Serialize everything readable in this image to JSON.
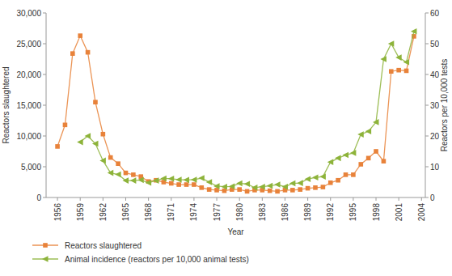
{
  "chart_data": {
    "type": "line",
    "x_label": "Year",
    "y_label": "Reactors slaughtered",
    "y2_label": "Reactors per 10,000 tests",
    "x": [
      1956,
      1957,
      1958,
      1959,
      1960,
      1961,
      1962,
      1963,
      1964,
      1965,
      1966,
      1967,
      1968,
      1969,
      1970,
      1971,
      1972,
      1973,
      1974,
      1975,
      1976,
      1977,
      1978,
      1979,
      1980,
      1981,
      1982,
      1983,
      1984,
      1985,
      1986,
      1987,
      1988,
      1989,
      1990,
      1991,
      1992,
      1993,
      1994,
      1995,
      1996,
      1997,
      1998,
      1999,
      2000,
      2001,
      2002,
      2003
    ],
    "xlim": [
      1954.5,
      2004.5
    ],
    "xticks": [
      1956,
      1959,
      1962,
      1965,
      1968,
      1971,
      1974,
      1977,
      1980,
      1983,
      1986,
      1989,
      1992,
      1995,
      1998,
      2001,
      2004
    ],
    "ylim": [
      0,
      30000
    ],
    "yticks": [
      0,
      {
        "value": 5000,
        "label": "5,000"
      },
      {
        "value": 10000,
        "label": "10,000"
      },
      {
        "value": 15000,
        "label": "15,000"
      },
      {
        "value": 20000,
        "label": "20,000"
      },
      {
        "value": 25000,
        "label": "25,000"
      },
      {
        "value": 30000,
        "label": "30,000"
      }
    ],
    "y2lim": [
      0,
      60
    ],
    "y2ticks": [
      0,
      10,
      20,
      30,
      40,
      50,
      60
    ],
    "legend": "bottom",
    "grid": false,
    "series": [
      {
        "name": "Reactors slaughtered",
        "color": "#e8823a",
        "marker": "square",
        "values": [
          8300,
          11800,
          23400,
          26300,
          23600,
          15500,
          10300,
          6500,
          5500,
          4000,
          3700,
          3400,
          2600,
          2800,
          2500,
          2300,
          2100,
          2100,
          2100,
          1600,
          1300,
          1200,
          1100,
          1300,
          1300,
          1000,
          1200,
          1200,
          1100,
          1000,
          1200,
          1200,
          1300,
          1500,
          1600,
          1700,
          2400,
          2800,
          3700,
          3700,
          5400,
          6400,
          7500,
          5900,
          20500,
          20700,
          20600,
          26200
        ]
      },
      {
        "name": "Animal incidence (reactors per 10,000 animal tests)",
        "color": "#8db33a",
        "marker": "triangle-left",
        "axis": "y2",
        "values": [
          null,
          null,
          null,
          18,
          20,
          17.5,
          12,
          8,
          7.5,
          5.5,
          5.5,
          5.7,
          4.8,
          5.5,
          6.2,
          6.1,
          5.8,
          5.7,
          5.8,
          6.3,
          5,
          3.7,
          3.5,
          3.6,
          4.6,
          4.4,
          3.2,
          3.5,
          3.8,
          4.2,
          3.5,
          4.6,
          4.7,
          6,
          6.5,
          6.8,
          11.5,
          12.8,
          13.8,
          14.5,
          20.5,
          21.5,
          24.5,
          45,
          50,
          45.5,
          44,
          54
        ]
      }
    ]
  }
}
